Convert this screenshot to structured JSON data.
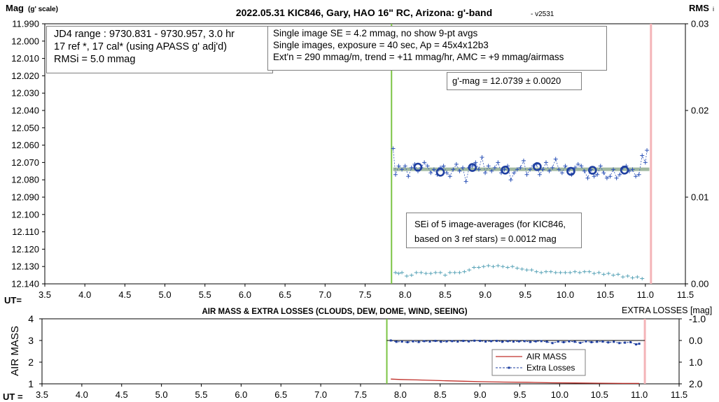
{
  "chart_data": [
    {
      "type": "scatter",
      "title": "2022.05.31 KIC846, Gary, HAO 16\" RC, Arizona: g'-band",
      "version": "- v2531",
      "ylabel": "Mag",
      "ylabel_unit": "(g' scale)",
      "y2label": "RMS",
      "y2label_sub": "i",
      "xlabel": "UT=",
      "xlim": [
        3.5,
        11.5
      ],
      "ylim": [
        11.99,
        12.14
      ],
      "y_inverted": true,
      "y2lim": [
        0.0,
        0.03
      ],
      "x_ticks": [
        "3.5",
        "4.0",
        "4.5",
        "5.0",
        "5.5",
        "6.0",
        "6.5",
        "7.0",
        "7.5",
        "8.0",
        "8.5",
        "9.0",
        "9.5",
        "10.0",
        "10.5",
        "11.0",
        "11.5"
      ],
      "y_ticks": [
        "11.990",
        "12.000",
        "12.010",
        "12.020",
        "12.030",
        "12.040",
        "12.050",
        "12.060",
        "12.070",
        "12.080",
        "12.090",
        "12.100",
        "12.110",
        "12.120",
        "12.130",
        "12.140"
      ],
      "y2_ticks": [
        "0.03",
        "0.02",
        "0.01",
        "0.00"
      ],
      "start_line_x": 7.83,
      "end_line_x": 11.07,
      "fit_mag": 12.0739,
      "fit_x": [
        7.85,
        11.05
      ],
      "series": [
        {
          "kind": "single-images",
          "color": "#2e54b8",
          "x": [
            7.85,
            7.88,
            7.92,
            7.96,
            8.0,
            8.04,
            8.08,
            8.12,
            8.16,
            8.2,
            8.24,
            8.28,
            8.32,
            8.36,
            8.4,
            8.44,
            8.48,
            8.52,
            8.56,
            8.6,
            8.64,
            8.68,
            8.72,
            8.76,
            8.8,
            8.84,
            8.88,
            8.92,
            8.96,
            9.0,
            9.04,
            9.08,
            9.12,
            9.16,
            9.2,
            9.24,
            9.28,
            9.32,
            9.36,
            9.4,
            9.44,
            9.48,
            9.52,
            9.56,
            9.6,
            9.64,
            9.68,
            9.72,
            9.76,
            9.8,
            9.84,
            9.88,
            9.92,
            9.96,
            10.0,
            10.04,
            10.08,
            10.12,
            10.16,
            10.2,
            10.24,
            10.28,
            10.32,
            10.36,
            10.4,
            10.44,
            10.48,
            10.52,
            10.56,
            10.6,
            10.64,
            10.68,
            10.72,
            10.76,
            10.8,
            10.84,
            10.88,
            10.92,
            10.96,
            11.0,
            11.02
          ],
          "y": [
            12.062,
            12.077,
            12.072,
            12.074,
            12.072,
            12.078,
            12.073,
            12.071,
            12.075,
            12.073,
            12.07,
            12.072,
            12.076,
            12.074,
            12.077,
            12.073,
            12.072,
            12.076,
            12.078,
            12.074,
            12.071,
            12.075,
            12.073,
            12.081,
            12.073,
            12.072,
            12.07,
            12.074,
            12.067,
            12.076,
            12.072,
            12.075,
            12.073,
            12.07,
            12.076,
            12.074,
            12.072,
            12.08,
            12.076,
            12.074,
            12.073,
            12.069,
            12.077,
            12.074,
            12.072,
            12.071,
            12.077,
            12.074,
            12.07,
            12.075,
            12.073,
            12.068,
            12.074,
            12.076,
            12.072,
            12.074,
            12.077,
            12.073,
            12.071,
            12.072,
            12.075,
            12.079,
            12.074,
            12.078,
            12.077,
            12.072,
            12.076,
            12.079,
            12.078,
            12.074,
            12.079,
            12.077,
            12.073,
            12.072,
            12.075,
            12.074,
            12.078,
            12.077,
            12.066,
            12.07,
            12.063
          ]
        },
        {
          "kind": "9-pt-averages",
          "color": "#1f3fa0",
          "x": [
            8.16,
            8.44,
            8.84,
            9.25,
            9.65,
            10.07,
            10.34,
            10.74
          ],
          "y": [
            12.0727,
            12.0756,
            12.0729,
            12.0744,
            12.0724,
            12.0751,
            12.0745,
            12.0744
          ]
        },
        {
          "kind": "rms",
          "axis": "right",
          "color": "#5aa4b8",
          "x": [
            7.88,
            7.92,
            7.96,
            8.02,
            8.08,
            8.14,
            8.2,
            8.26,
            8.32,
            8.38,
            8.44,
            8.5,
            8.56,
            8.62,
            8.68,
            8.74,
            8.8,
            8.86,
            8.92,
            8.98,
            9.04,
            9.1,
            9.16,
            9.22,
            9.28,
            9.34,
            9.4,
            9.46,
            9.52,
            9.58,
            9.64,
            9.7,
            9.76,
            9.82,
            9.88,
            9.94,
            10.0,
            10.06,
            10.12,
            10.18,
            10.24,
            10.3,
            10.36,
            10.42,
            10.48,
            10.54,
            10.6,
            10.66,
            10.72,
            10.78,
            10.84,
            10.9,
            10.96
          ],
          "y": [
            0.0013,
            0.0012,
            0.0013,
            0.0009,
            0.001,
            0.0013,
            0.0013,
            0.0012,
            0.0012,
            0.0013,
            0.0013,
            0.001,
            0.0013,
            0.0013,
            0.0013,
            0.0014,
            0.0016,
            0.0019,
            0.0019,
            0.002,
            0.0021,
            0.002,
            0.0021,
            0.002,
            0.0019,
            0.002,
            0.0018,
            0.0017,
            0.0016,
            0.0016,
            0.0014,
            0.0013,
            0.0014,
            0.0014,
            0.0013,
            0.0013,
            0.0013,
            0.0013,
            0.0014,
            0.0013,
            0.0014,
            0.0014,
            0.0012,
            0.0013,
            0.0011,
            0.0012,
            0.001,
            0.0011,
            0.0008,
            0.0009,
            0.0007,
            0.0008,
            0.0006
          ]
        }
      ],
      "info_box_1": [
        "JD4 range : 9730.831 - 9730.957,  3.0 hr",
        "17 ref *, 17 cal* (using APASS g' adj'd)",
        "RMSi = 5.0 mmag"
      ],
      "info_box_2": [
        "Single image SE = 4.2 mmag, no show  9-pt avgs",
        "Single images, exposure = 40 sec, Ap = 45x4x12b3",
        "Ext'n = 290 mmag/m, trend = +11 mmag/hr, AMC = +9 mmag/airmass"
      ],
      "gmag_box": "g'-mag = 12.0739 ± 0.0020",
      "sei_box": [
        "SEi of 5 image-averages (for KIC846,",
        "based on 3 ref stars) = 0.0012 mag"
      ]
    },
    {
      "type": "line",
      "title": "AIR MASS & EXTRA LOSSES (CLOUDS, DEW, DOME, WIND, SEEING)",
      "ylabel": "AIR MASS",
      "y2label": "EXTRA LOSSES [mag]",
      "xlabel": "UT =",
      "xlim": [
        3.5,
        11.5
      ],
      "ylim": [
        1,
        4
      ],
      "y2lim": [
        -1.0,
        2.0
      ],
      "y2_inverted": true,
      "x_ticks": [
        "3.5",
        "4.0",
        "4.5",
        "5.0",
        "5.5",
        "6.0",
        "6.5",
        "7.0",
        "7.5",
        "8.0",
        "8.5",
        "9.0",
        "9.5",
        "10.0",
        "10.5",
        "11.0",
        "11.5"
      ],
      "y_ticks": [
        "4",
        "3",
        "2",
        "1"
      ],
      "y2_ticks": [
        "-1.0",
        "0.0",
        "1.0",
        "2.0"
      ],
      "start_line_x": 7.83,
      "end_line_x": 11.07,
      "zero_line": 0.0,
      "legend": [
        "AIR MASS",
        "Extra Losses"
      ],
      "series": [
        {
          "name": "AIR MASS",
          "color": "#c0302a",
          "x": [
            7.88,
            8.0,
            8.2,
            8.5,
            8.8,
            9.0,
            9.3,
            9.6,
            9.9,
            10.2,
            10.5,
            10.8,
            11.0
          ],
          "y": [
            1.22,
            1.2,
            1.18,
            1.15,
            1.12,
            1.1,
            1.08,
            1.07,
            1.05,
            1.04,
            1.03,
            1.02,
            1.02
          ]
        },
        {
          "name": "Extra Losses",
          "axis": "right",
          "color": "#1f3fa0",
          "x": [
            7.88,
            7.95,
            8.02,
            8.09,
            8.16,
            8.23,
            8.3,
            8.37,
            8.44,
            8.51,
            8.58,
            8.65,
            8.72,
            8.79,
            8.86,
            8.93,
            9.0,
            9.07,
            9.14,
            9.21,
            9.28,
            9.35,
            9.42,
            9.49,
            9.56,
            9.63,
            9.7,
            9.77,
            9.84,
            9.91,
            9.98,
            10.05,
            10.12,
            10.19,
            10.26,
            10.33,
            10.4,
            10.47,
            10.54,
            10.61,
            10.68,
            10.75,
            10.82,
            10.89,
            10.96,
            11.0
          ],
          "y": [
            0.0,
            0.06,
            0.05,
            0.08,
            0.04,
            0.07,
            0.03,
            0.05,
            0.02,
            0.06,
            0.04,
            0.03,
            0.05,
            0.02,
            0.04,
            0.01,
            0.02,
            0.05,
            0.03,
            0.02,
            0.06,
            0.03,
            0.05,
            0.04,
            0.03,
            0.07,
            0.04,
            0.03,
            0.06,
            0.12,
            0.05,
            0.08,
            0.04,
            0.06,
            0.11,
            0.04,
            0.08,
            0.06,
            0.05,
            0.09,
            0.06,
            0.12,
            0.1,
            0.08,
            0.18,
            0.15
          ]
        }
      ]
    }
  ]
}
